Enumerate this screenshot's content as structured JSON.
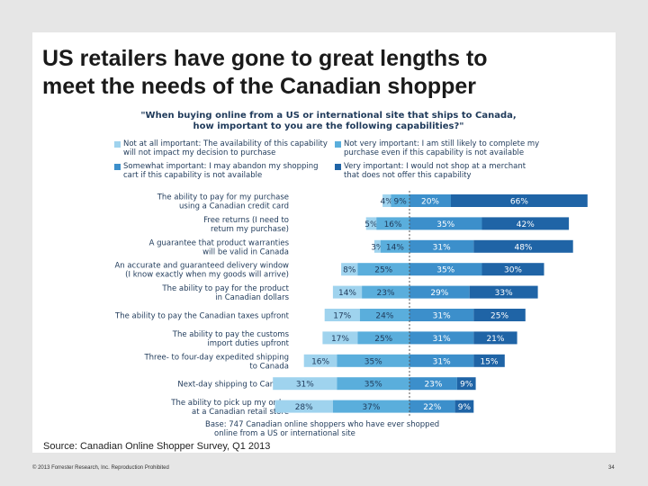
{
  "slide": {
    "title_line1": "US retailers have gone to great lengths to",
    "title_line2": "meet the needs of the Canadian shopper",
    "question_line1": "\"When buying online from a US or international site that ships to Canada,",
    "question_line2": "how important to you are the following capabilities?\"",
    "base_line1": "Base: 747 Canadian online shoppers who have ever shopped",
    "base_line2": "online from a US or international site",
    "source": "Source: Canadian Online Shopper Survey, Q1 2013",
    "footer_left": "© 2013 Forrester Research, Inc. Reproduction Prohibited",
    "footer_right": "34"
  },
  "legend": [
    {
      "line1": "Not at all important: The availability of this capability",
      "line2": "will not impact my decision to purchase",
      "color": "#9fd3ee"
    },
    {
      "line1": "Not very important: I am still likely to complete my",
      "line2": "purchase even if this capability is not available",
      "color": "#5aaedc"
    },
    {
      "line1": "Somewhat important: I may abandon my shopping",
      "line2": "cart if this capability is not available",
      "color": "#3c8fcb"
    },
    {
      "line1": "Very important: I would not shop at a merchant",
      "line2": "that does not offer this capability",
      "color": "#1f64a6"
    }
  ],
  "chart_data": {
    "type": "bar",
    "orientation": "horizontal",
    "stacking": "diverging",
    "categories": [
      [
        "The ability to pay for my purchase",
        "using a Canadian credit card"
      ],
      [
        "Free returns (I need to",
        "return my purchase)"
      ],
      [
        "A guarantee that product warranties",
        "will be valid in Canada"
      ],
      [
        "An accurate and guaranteed delivery window",
        "(I know exactly when my goods will arrive)"
      ],
      [
        "The ability to pay for the product",
        "in Canadian dollars"
      ],
      [
        "The ability to pay the Canadian taxes upfront"
      ],
      [
        "The ability to pay the customs",
        "import duties upfront"
      ],
      [
        "Three- to four-day expedited shipping",
        "to Canada"
      ],
      [
        "Next-day shipping to Canada"
      ],
      [
        "The ability to pick up my order",
        "at a Canadian retail store"
      ]
    ],
    "series": [
      {
        "name": "Not at all important",
        "values": [
          4,
          5,
          3,
          8,
          14,
          17,
          17,
          16,
          31,
          28
        ]
      },
      {
        "name": "Not very important",
        "values": [
          9,
          16,
          14,
          25,
          23,
          24,
          25,
          35,
          35,
          37
        ]
      },
      {
        "name": "Somewhat important",
        "values": [
          20,
          35,
          31,
          35,
          29,
          31,
          31,
          31,
          23,
          22
        ]
      },
      {
        "name": "Very important",
        "values": [
          66,
          42,
          48,
          30,
          33,
          25,
          21,
          15,
          9,
          9
        ]
      }
    ],
    "unit": "%"
  }
}
